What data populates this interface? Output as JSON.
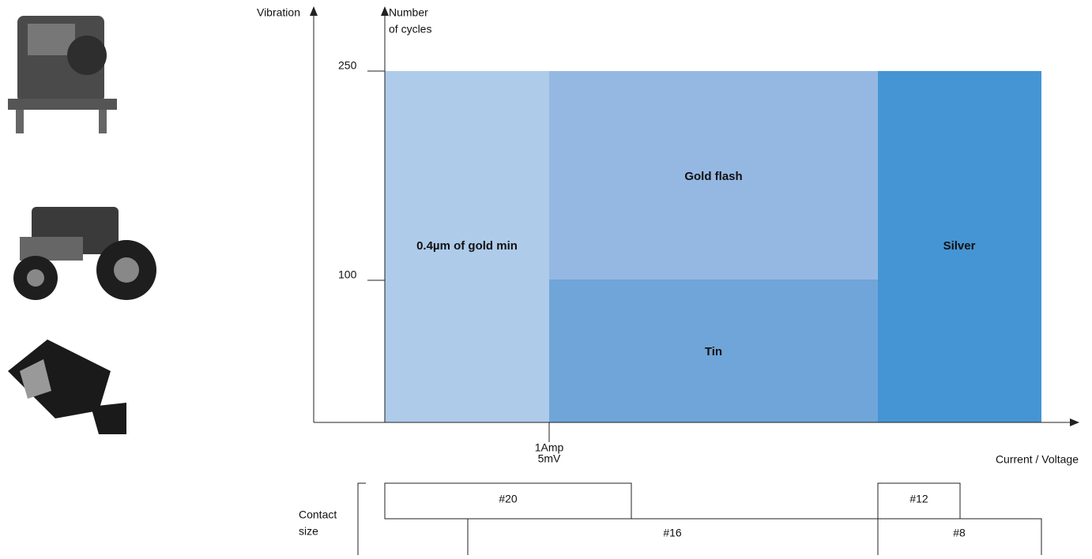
{
  "axes": {
    "y_label": "Vibration",
    "y2_label": [
      "Number",
      "of cycles"
    ],
    "x_label": "Current / Voltage",
    "y_ticks": [
      "250",
      "100"
    ],
    "x_tick": [
      "1Amp",
      "5mV"
    ]
  },
  "regions": [
    "0.4µm of gold min",
    "Gold flash",
    "Tin",
    "Silver"
  ],
  "contact": {
    "label": [
      "Contact",
      "size"
    ],
    "sizes": [
      "#20",
      "#12",
      "#16",
      "#8"
    ]
  }
}
